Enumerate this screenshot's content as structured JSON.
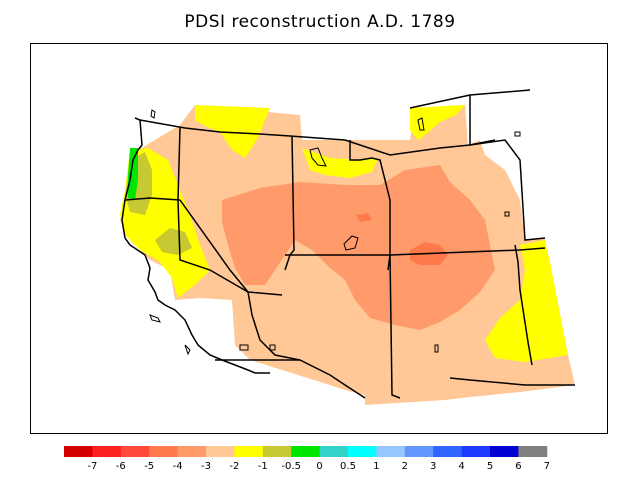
{
  "title": "PDSI reconstruction A.D. 1789",
  "legend": {
    "colors": [
      "#d40000",
      "#ff2020",
      "#ff4a3a",
      "#ff7a4a",
      "#ff9a6a",
      "#ffc896",
      "#ffff00",
      "#c8c832",
      "#00e600",
      "#32d2c8",
      "#00ffff",
      "#96c8ff",
      "#6496ff",
      "#3264ff",
      "#1e3cff",
      "#0000d2",
      "#808080"
    ],
    "ticks": [
      "-7",
      "-6",
      "-5",
      "-4",
      "-3",
      "-2",
      "-1",
      "-0.5",
      "0",
      "0.5",
      "1",
      "2",
      "3",
      "4",
      "5",
      "6",
      "7"
    ]
  }
}
